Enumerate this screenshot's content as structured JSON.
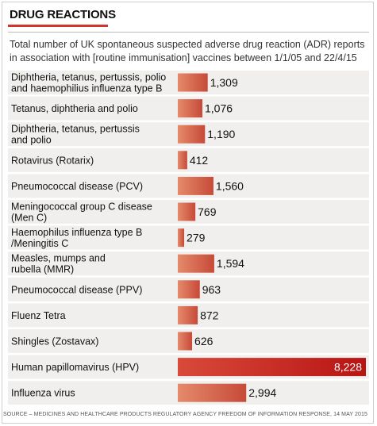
{
  "header": {
    "title": "DRUG REACTIONS",
    "subtitle": "Total number of UK spontaneous suspected adverse drug reaction (ADR) reports in association with [routine immunisation] vaccines between 1/1/05 and 22/4/15"
  },
  "chart_data": {
    "type": "bar",
    "orientation": "horizontal",
    "categories": [
      "Diphtheria, tetanus, pertussis, polio and haemophilius influenza type B",
      "Tetanus, diphtheria and polio",
      "Diphtheria, tetanus, pertussis and polio",
      "Rotavirus (Rotarix)",
      "Pneumococcal disease (PCV)",
      "Meningococcal group C disease (Men C)",
      "Haemophilus influenza type B /Meningitis C",
      "Measles, mumps and rubella (MMR)",
      "Pneumococcal disease (PPV)",
      "Fluenz Tetra",
      "Shingles (Zostavax)",
      "Human papillomavirus (HPV)",
      "Influenza virus"
    ],
    "label_lines": [
      [
        "Diphtheria, tetanus, pertussis, polio",
        "and haemophilius influenza type B"
      ],
      [
        "Tetanus, diphtheria and polio"
      ],
      [
        "Diphtheria, tetanus, pertussis",
        "and polio"
      ],
      [
        "Rotavirus (Rotarix)"
      ],
      [
        "Pneumococcal disease (PCV)"
      ],
      [
        "Meningococcal group C disease",
        "(Men C)"
      ],
      [
        "Haemophilus influenza type B",
        "/Meningitis C"
      ],
      [
        "Measles, mumps and",
        "rubella (MMR)"
      ],
      [
        "Pneumococcal disease (PPV)"
      ],
      [
        "Fluenz Tetra"
      ],
      [
        "Shingles (Zostavax)"
      ],
      [
        "Human papillomavirus (HPV)"
      ],
      [
        "Influenza virus"
      ]
    ],
    "values": [
      1309,
      1076,
      1190,
      412,
      1560,
      769,
      279,
      1594,
      963,
      872,
      626,
      8228,
      2994
    ],
    "value_labels": [
      "1,309",
      "1,076",
      "1,190",
      "412",
      "1,560",
      "769",
      "279",
      "1,594",
      "963",
      "872",
      "626",
      "8,228",
      "2,994"
    ],
    "xlim": [
      0,
      8228
    ],
    "colors": {
      "bar_gradient_start": "#e58a6b",
      "bar_gradient_end": "#c64a38",
      "highlight_start": "#d84a3a",
      "highlight_end": "#b81414",
      "row_background": "#f0efed"
    },
    "highlight_index": 11
  },
  "source": "SOURCE – MEDICINES AND HEALTHCARE PRODUCTS REGULATORY AGENCY FREEDOM OF INFORMATION RESPONSE, 14 MAY 2015"
}
